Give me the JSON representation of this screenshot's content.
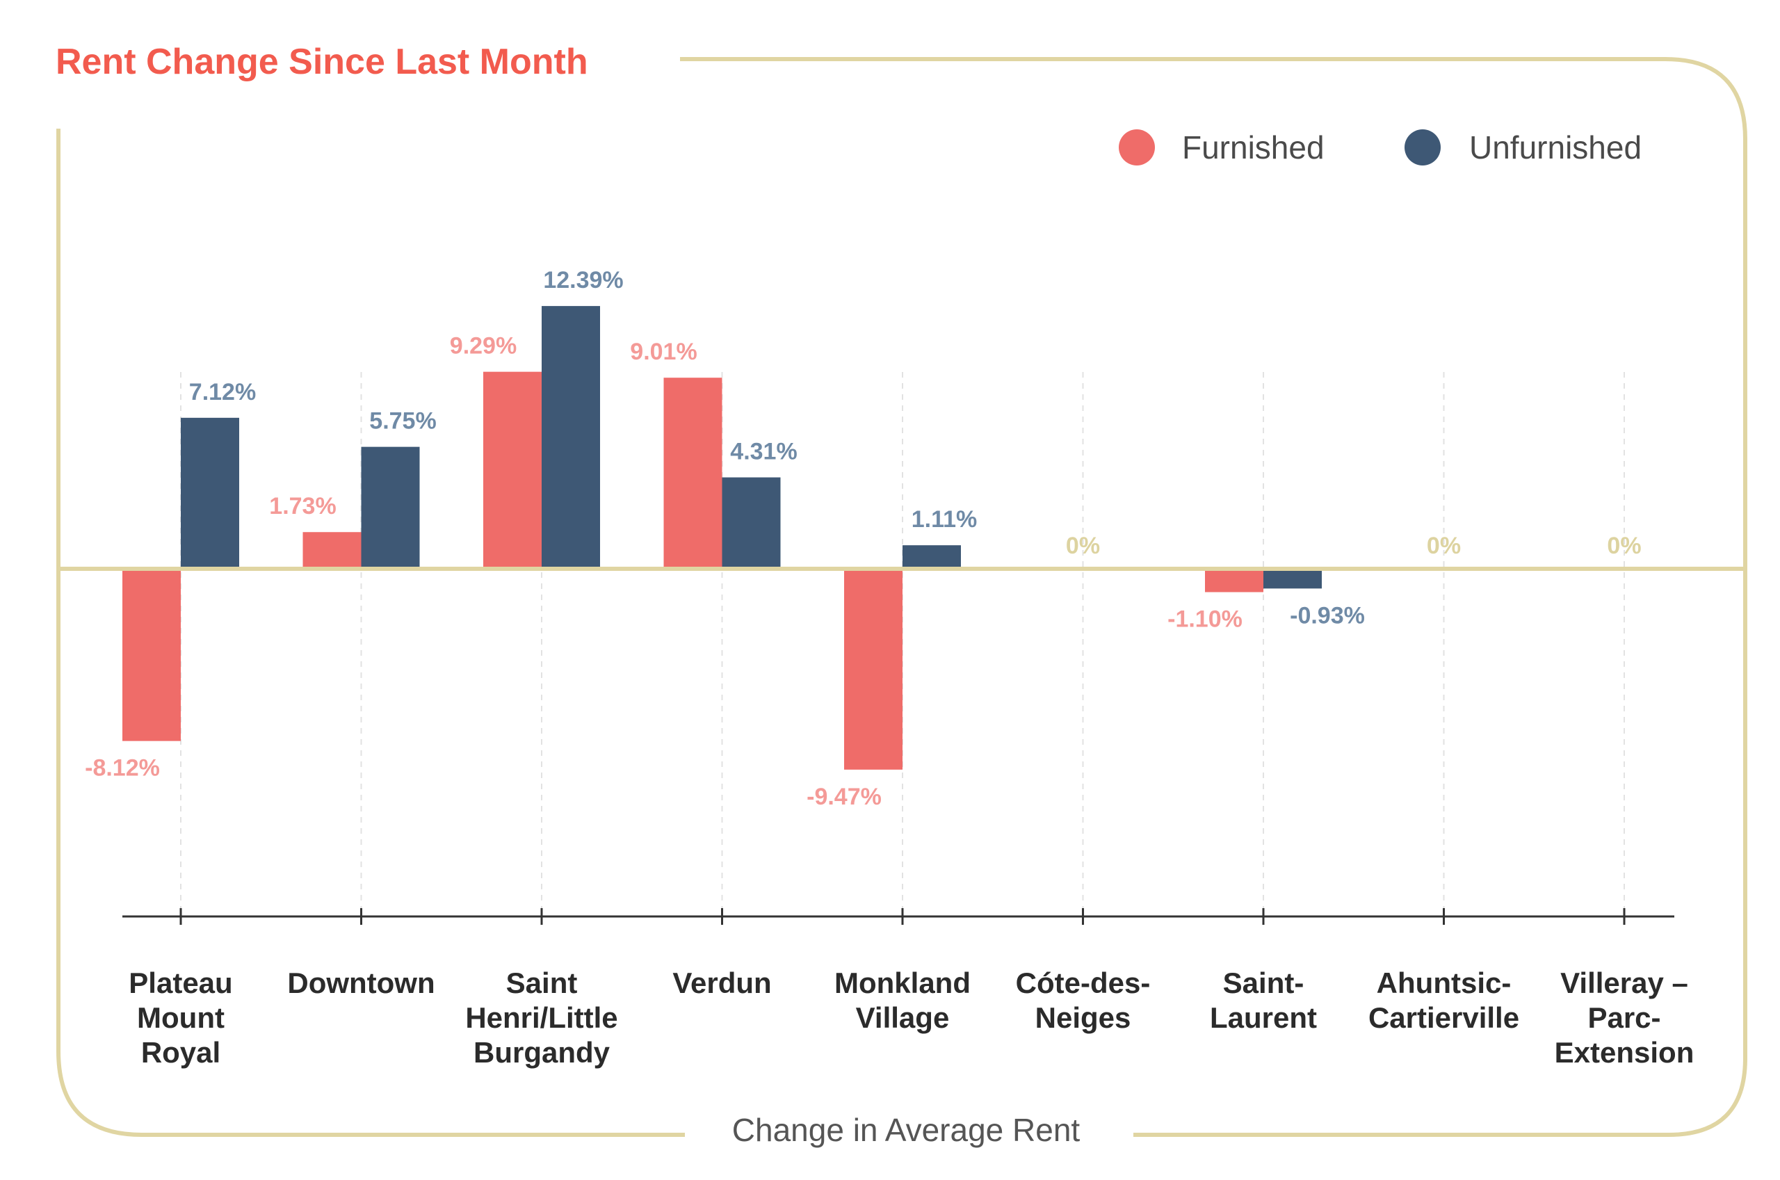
{
  "colors": {
    "furnished": "#ef6c69",
    "unfurnished": "#3e5875",
    "furnished_label": "#f49a97",
    "unfurnished_label": "#6f8aa6",
    "zero_label": "#ddd3a0",
    "frame": "#e0d5a2",
    "title": "#f25b4e"
  },
  "chart_data": {
    "type": "bar",
    "title": "Rent Change Since Last Month",
    "xlabel": "Change in Average Rent",
    "ylabel": "",
    "ylim": [
      -18.5,
      18.5
    ],
    "legend_position": "top-right",
    "categories": [
      [
        "Plateau",
        "Mount",
        "Royal"
      ],
      [
        "Downtown"
      ],
      [
        "Saint",
        "Henri/Little",
        "Burgandy"
      ],
      [
        "Verdun"
      ],
      [
        "Monkland",
        "Village"
      ],
      [
        "Cóte-des-",
        "Neiges"
      ],
      [
        "Saint-",
        "Laurent"
      ],
      [
        "Ahuntsic-",
        "Cartierville"
      ],
      [
        "Villeray –",
        "Parc-",
        "Extension"
      ]
    ],
    "series": [
      {
        "name": "Furnished",
        "values": [
          -8.12,
          1.73,
          9.29,
          9.01,
          -9.47,
          0,
          -1.1,
          0,
          0
        ],
        "labels": [
          "-8.12%",
          "1.73%",
          "9.29%",
          "9.01%",
          "-9.47%",
          "",
          "-1.10%",
          "",
          ""
        ]
      },
      {
        "name": "Unfurnished",
        "values": [
          7.12,
          5.75,
          12.39,
          4.31,
          1.11,
          0,
          -0.93,
          0,
          0
        ],
        "labels": [
          "7.12%",
          "5.75%",
          "12.39%",
          "4.31%",
          "1.11%",
          "",
          "-0.93%",
          "",
          ""
        ]
      }
    ],
    "zero_labels": [
      "",
      "",
      "",
      "",
      "",
      "0%",
      "",
      "0%",
      "0%"
    ]
  }
}
